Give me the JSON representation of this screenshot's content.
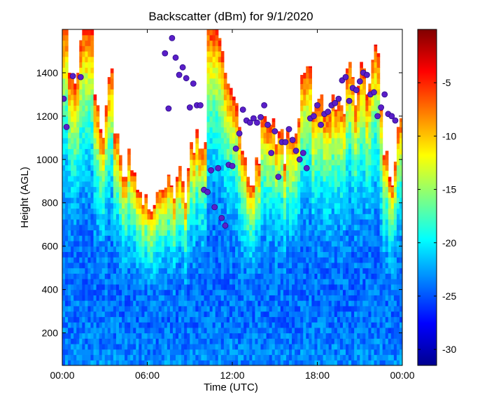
{
  "chart_data": {
    "type": "heatmap",
    "title": "Backscatter (dBm) for 9/1/2020",
    "xlabel": "Time (UTC)",
    "ylabel": "Height (AGL)",
    "x_ticks": [
      "00:00",
      "06:00",
      "12:00",
      "18:00",
      "00:00"
    ],
    "xlim_hours": [
      0,
      24
    ],
    "ylim": [
      50,
      1600
    ],
    "y_ticks": [
      200,
      400,
      600,
      800,
      1000,
      1200,
      1400
    ],
    "colorbar": {
      "colormap": "jet",
      "range": [
        -31.5,
        0
      ],
      "ticks": [
        -30,
        -25,
        -20,
        -15,
        -10,
        -5
      ]
    },
    "time_step_hours": 0.2,
    "profile_top": [
      1600,
      1600,
      1400,
      1380,
      1350,
      1400,
      1550,
      1600,
      1600,
      1600,
      1600,
      1300,
      1250,
      1140,
      1100,
      1250,
      1380,
      1420,
      1120,
      1120,
      1020,
      920,
      920,
      1050,
      950,
      940,
      860,
      850,
      790,
      840,
      770,
      760,
      790,
      850,
      860,
      860,
      870,
      930,
      880,
      820,
      920,
      970,
      900,
      800,
      960,
      1080,
      1030,
      1140,
      1050,
      1050,
      1080,
      1600,
      1600,
      1600,
      1600,
      1560,
      1500,
      1400,
      1350,
      1330,
      1290,
      1260,
      1150,
      1040,
      1010,
      920,
      880,
      880,
      1010,
      980,
      1200,
      1200,
      1160,
      1160,
      1190,
      1070,
      1130,
      1140,
      980,
      1140,
      1100,
      1100,
      1120,
      1190,
      1390,
      1400,
      1430,
      1430,
      1220,
      1260,
      1280,
      1300,
      1210,
      1220,
      1220,
      1300,
      1230,
      1280,
      1250,
      1210,
      1420,
      1450,
      1380,
      1250,
      1340,
      1450,
      1420,
      1300,
      1350,
      1460,
      1530,
      1490,
      1250,
      1020,
      1040,
      920,
      880,
      990,
      1150,
      1190,
      1250,
      1510,
      1480,
      1530,
      1520,
      1600,
      1600,
      1600,
      1600,
      1600,
      1600,
      1600,
      1600,
      1600,
      1600,
      1600,
      1600,
      1600,
      1600,
      1600,
      1600,
      1600,
      1600,
      1600,
      1600,
      1600,
      1600,
      1600,
      1600,
      1600,
      1600,
      1600,
      1600,
      1600,
      1400,
      1380,
      1410,
      1360,
      1330,
      1300,
      1280,
      1270,
      1280,
      1290,
      1230,
      1210,
      1000,
      1030,
      990
    ],
    "mixing_height_points": [
      {
        "x": 0.1,
        "y": 1280
      },
      {
        "x": 0.3,
        "y": 1150
      },
      {
        "x": 0.75,
        "y": 1385
      },
      {
        "x": 1.3,
        "y": 1380
      },
      {
        "x": 7.25,
        "y": 1490
      },
      {
        "x": 7.5,
        "y": 1235
      },
      {
        "x": 7.75,
        "y": 1560
      },
      {
        "x": 8.0,
        "y": 1470
      },
      {
        "x": 8.25,
        "y": 1390
      },
      {
        "x": 8.5,
        "y": 1425
      },
      {
        "x": 8.75,
        "y": 1375
      },
      {
        "x": 9.0,
        "y": 1240
      },
      {
        "x": 9.25,
        "y": 1350
      },
      {
        "x": 9.5,
        "y": 1250
      },
      {
        "x": 9.75,
        "y": 1250
      },
      {
        "x": 10.0,
        "y": 860
      },
      {
        "x": 10.25,
        "y": 850
      },
      {
        "x": 10.5,
        "y": 950
      },
      {
        "x": 10.75,
        "y": 780
      },
      {
        "x": 11.0,
        "y": 960
      },
      {
        "x": 11.25,
        "y": 730
      },
      {
        "x": 11.5,
        "y": 695
      },
      {
        "x": 11.75,
        "y": 975
      },
      {
        "x": 12.0,
        "y": 970
      },
      {
        "x": 12.25,
        "y": 1050
      },
      {
        "x": 12.5,
        "y": 1120
      },
      {
        "x": 12.75,
        "y": 1230
      },
      {
        "x": 13.0,
        "y": 1180
      },
      {
        "x": 13.25,
        "y": 1170
      },
      {
        "x": 13.5,
        "y": 1190
      },
      {
        "x": 13.75,
        "y": 1170
      },
      {
        "x": 14.0,
        "y": 1195
      },
      {
        "x": 14.25,
        "y": 1250
      },
      {
        "x": 14.5,
        "y": 1160
      },
      {
        "x": 14.75,
        "y": 1030
      },
      {
        "x": 15.0,
        "y": 1130
      },
      {
        "x": 15.25,
        "y": 920
      },
      {
        "x": 15.5,
        "y": 1080
      },
      {
        "x": 15.75,
        "y": 1080
      },
      {
        "x": 16.0,
        "y": 1140
      },
      {
        "x": 16.25,
        "y": 1090
      },
      {
        "x": 16.5,
        "y": 1040
      },
      {
        "x": 16.75,
        "y": 1000
      },
      {
        "x": 17.0,
        "y": 1030
      },
      {
        "x": 17.25,
        "y": 960
      },
      {
        "x": 17.5,
        "y": 1190
      },
      {
        "x": 17.75,
        "y": 1200
      },
      {
        "x": 18.0,
        "y": 1250
      },
      {
        "x": 18.25,
        "y": 1160
      },
      {
        "x": 18.5,
        "y": 1210
      },
      {
        "x": 18.75,
        "y": 1220
      },
      {
        "x": 19.0,
        "y": 1250
      },
      {
        "x": 19.25,
        "y": 1260
      },
      {
        "x": 19.5,
        "y": 1280
      },
      {
        "x": 19.75,
        "y": 1365
      },
      {
        "x": 20.0,
        "y": 1380
      },
      {
        "x": 20.25,
        "y": 1270
      },
      {
        "x": 20.5,
        "y": 1330
      },
      {
        "x": 20.75,
        "y": 1320
      },
      {
        "x": 21.0,
        "y": 1360
      },
      {
        "x": 21.25,
        "y": 1400
      },
      {
        "x": 21.5,
        "y": 1390
      },
      {
        "x": 21.75,
        "y": 1300
      },
      {
        "x": 22.0,
        "y": 1310
      },
      {
        "x": 22.25,
        "y": 1200
      },
      {
        "x": 22.5,
        "y": 1240
      },
      {
        "x": 22.75,
        "y": 1300
      },
      {
        "x": 23.0,
        "y": 1210
      },
      {
        "x": 23.25,
        "y": 1200
      },
      {
        "x": 23.5,
        "y": 1180
      }
    ]
  }
}
